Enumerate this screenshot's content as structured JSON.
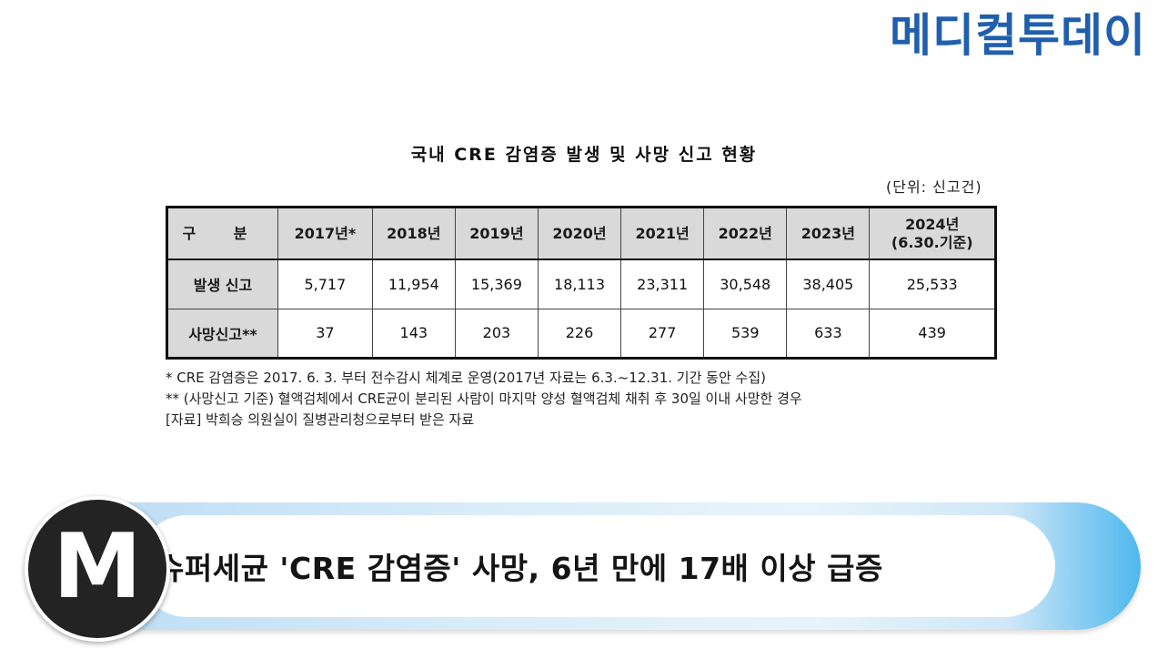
{
  "brand": "메디컬투데이",
  "table": {
    "title": "국내 CRE 감염증 발생 및 사망 신고 현황",
    "unit": "(단위: 신고건)",
    "corner": "구 분",
    "columns": [
      "2017년*",
      "2018년",
      "2019년",
      "2020년",
      "2021년",
      "2022년",
      "2023년",
      "2024년\n(6.30.기준)"
    ],
    "rows": [
      {
        "label": "발생 신고",
        "values": [
          "5,717",
          "11,954",
          "15,369",
          "18,113",
          "23,311",
          "30,548",
          "38,405",
          "25,533"
        ]
      },
      {
        "label": "사망신고**",
        "values": [
          "37",
          "143",
          "203",
          "226",
          "277",
          "539",
          "633",
          "439"
        ]
      }
    ]
  },
  "notes": [
    "* CRE 감염증은 2017. 6. 3. 부터 전수감시 체계로 운영(2017년 자료는 6.3.~12.31. 기간 동안 수집)",
    "** (사망신고 기준) 혈액검체에서 CRE균이 분리된 사람이 마지막 양성 혈액검체 채취 후 30일 이내 사망한 경우",
    "[자료] 박희승 의원실이 질병관리청으로부터 받은 자료"
  ],
  "caption": {
    "badge": "M",
    "headline": "슈퍼세균 'CRE 감염증' 사망, 6년 만에 17배 이상 급증"
  }
}
